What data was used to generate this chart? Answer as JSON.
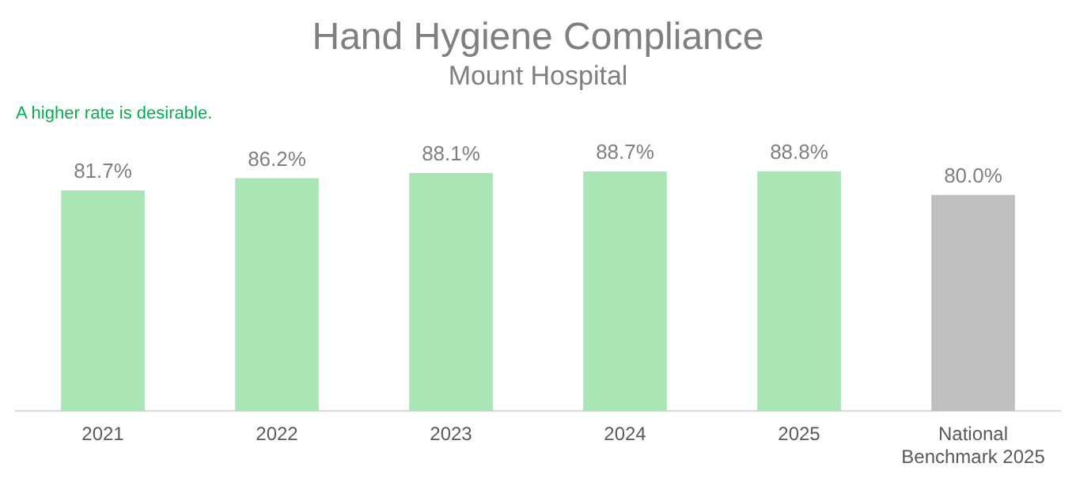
{
  "chart_data": {
    "type": "bar",
    "title": "Hand Hygiene Compliance",
    "subtitle": "Mount Hospital",
    "annotations": [
      "A higher rate is desirable."
    ],
    "categories": [
      "2021",
      "2022",
      "2023",
      "2024",
      "2025",
      "National Benchmark 2025"
    ],
    "values": [
      81.7,
      86.2,
      88.1,
      88.7,
      88.8,
      80.0
    ],
    "value_labels": [
      "81.7%",
      "86.2%",
      "88.1%",
      "88.7%",
      "88.8%",
      "80.0%"
    ],
    "colors": [
      "#a9e5b5",
      "#a9e5b5",
      "#a9e5b5",
      "#a9e5b5",
      "#a9e5b5",
      "#bfbfbf"
    ],
    "tick_labels": "x",
    "grid": false,
    "legend": false
  }
}
